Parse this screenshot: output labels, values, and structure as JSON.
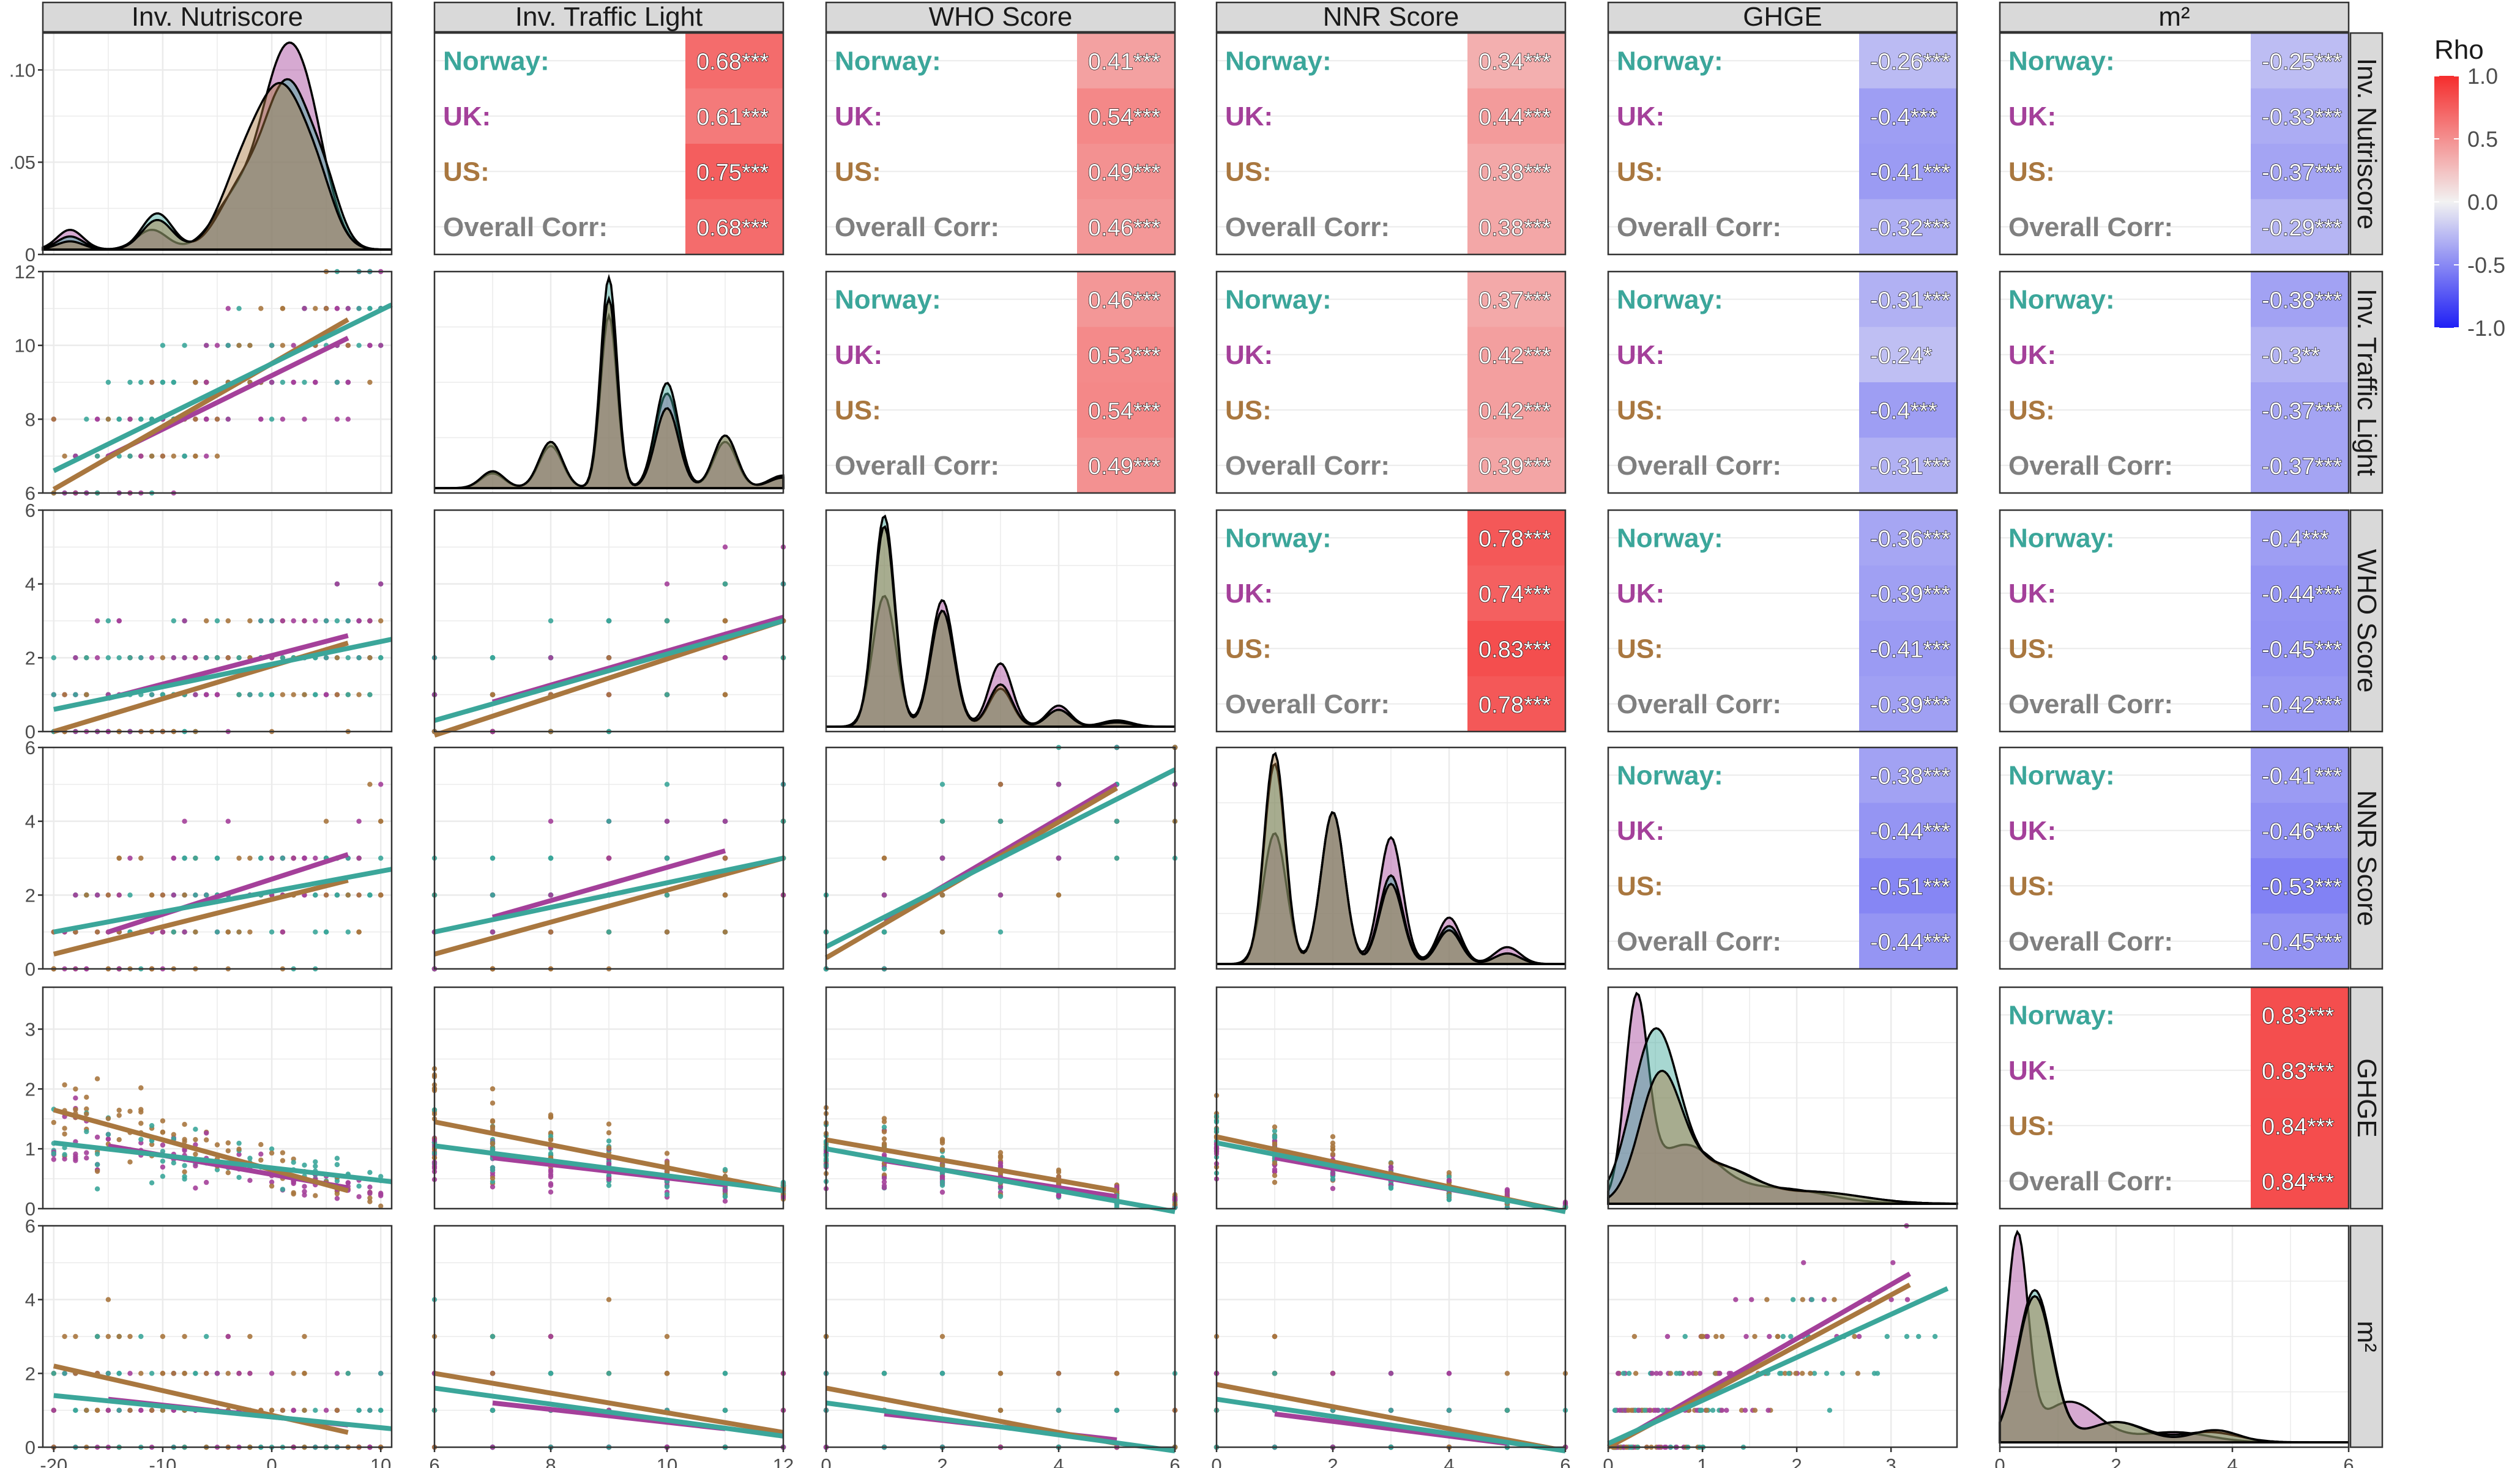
{
  "chart_data": {
    "type": "scatter",
    "title": "",
    "variables": [
      "Inv. Nutriscore",
      "Inv. Traffic Light",
      "WHO Score",
      "NNR Score",
      "GHGE",
      "m²"
    ],
    "groups": [
      {
        "name": "Norway",
        "color": "#3ba69a"
      },
      {
        "name": "UK",
        "color": "#a4409a"
      },
      {
        "name": "US",
        "color": "#a9773f"
      }
    ],
    "overall_label": "Overall Corr:",
    "overall_color": "#7f7f7f",
    "row_labels": [
      "Norway:",
      "UK:",
      "US:",
      "Overall Corr:"
    ],
    "axes": [
      {
        "range": [
          -21,
          11
        ],
        "ticks": [
          -20,
          -10,
          0,
          10
        ],
        "density_ticks": [
          0,
          0.05,
          0.1
        ],
        "density_labels": [
          "0",
          ".05",
          ".10"
        ],
        "density_max": 0.12
      },
      {
        "range": [
          6,
          12
        ],
        "ticks": [
          6,
          8,
          10,
          12
        ]
      },
      {
        "range": [
          0,
          6
        ],
        "ticks": [
          0,
          2,
          4,
          6
        ]
      },
      {
        "range": [
          0,
          6
        ],
        "ticks": [
          0,
          2,
          4,
          6
        ]
      },
      {
        "range": [
          0,
          3.7
        ],
        "ticks": [
          0,
          1,
          2,
          3
        ]
      },
      {
        "range": [
          0,
          6
        ],
        "ticks": [
          0,
          2,
          4,
          6
        ]
      }
    ],
    "correlations": [
      {
        "row": 0,
        "col": 1,
        "values": [
          "0.68***",
          "0.61***",
          "0.75***",
          "0.68***"
        ],
        "rho": [
          0.68,
          0.61,
          0.75,
          0.68
        ]
      },
      {
        "row": 0,
        "col": 2,
        "values": [
          "0.41***",
          "0.54***",
          "0.49***",
          "0.46***"
        ],
        "rho": [
          0.41,
          0.54,
          0.49,
          0.46
        ]
      },
      {
        "row": 0,
        "col": 3,
        "values": [
          "0.34***",
          "0.44***",
          "0.38***",
          "0.38***"
        ],
        "rho": [
          0.34,
          0.44,
          0.38,
          0.38
        ]
      },
      {
        "row": 0,
        "col": 4,
        "values": [
          "-0.26***",
          "-0.4***",
          "-0.41***",
          "-0.32***"
        ],
        "rho": [
          -0.26,
          -0.4,
          -0.41,
          -0.32
        ]
      },
      {
        "row": 0,
        "col": 5,
        "values": [
          "-0.25***",
          "-0.33***",
          "-0.37***",
          "-0.29***"
        ],
        "rho": [
          -0.25,
          -0.33,
          -0.37,
          -0.29
        ]
      },
      {
        "row": 1,
        "col": 2,
        "values": [
          "0.46***",
          "0.53***",
          "0.54***",
          "0.49***"
        ],
        "rho": [
          0.46,
          0.53,
          0.54,
          0.49
        ]
      },
      {
        "row": 1,
        "col": 3,
        "values": [
          "0.37***",
          "0.42***",
          "0.42***",
          "0.39***"
        ],
        "rho": [
          0.37,
          0.42,
          0.42,
          0.39
        ]
      },
      {
        "row": 1,
        "col": 4,
        "values": [
          "-0.31***",
          "-0.24*",
          "-0.4***",
          "-0.31***"
        ],
        "rho": [
          -0.31,
          -0.24,
          -0.4,
          -0.31
        ]
      },
      {
        "row": 1,
        "col": 5,
        "values": [
          "-0.38***",
          "-0.3**",
          "-0.37***",
          "-0.37***"
        ],
        "rho": [
          -0.38,
          -0.3,
          -0.37,
          -0.37
        ]
      },
      {
        "row": 2,
        "col": 3,
        "values": [
          "0.78***",
          "0.74***",
          "0.83***",
          "0.78***"
        ],
        "rho": [
          0.78,
          0.74,
          0.83,
          0.78
        ]
      },
      {
        "row": 2,
        "col": 4,
        "values": [
          "-0.36***",
          "-0.39***",
          "-0.41***",
          "-0.39***"
        ],
        "rho": [
          -0.36,
          -0.39,
          -0.41,
          -0.39
        ]
      },
      {
        "row": 2,
        "col": 5,
        "values": [
          "-0.4***",
          "-0.44***",
          "-0.45***",
          "-0.42***"
        ],
        "rho": [
          -0.4,
          -0.44,
          -0.45,
          -0.42
        ]
      },
      {
        "row": 3,
        "col": 4,
        "values": [
          "-0.38***",
          "-0.44***",
          "-0.51***",
          "-0.44***"
        ],
        "rho": [
          -0.38,
          -0.44,
          -0.51,
          -0.44
        ]
      },
      {
        "row": 3,
        "col": 5,
        "values": [
          "-0.41***",
          "-0.46***",
          "-0.53***",
          "-0.45***"
        ],
        "rho": [
          -0.41,
          -0.46,
          -0.53,
          -0.45
        ]
      },
      {
        "row": 4,
        "col": 5,
        "values": [
          "0.83***",
          "0.83***",
          "0.84***",
          "0.84***"
        ],
        "rho": [
          0.83,
          0.83,
          0.84,
          0.84
        ]
      }
    ],
    "regression_lines": [
      {
        "row": 1,
        "col": 0,
        "lines": [
          [
            -20,
            6.6,
            11,
            11.1
          ],
          [
            -15,
            7.0,
            7,
            10.2
          ],
          [
            -20,
            6.1,
            7,
            10.7
          ]
        ]
      },
      {
        "row": 2,
        "col": 0,
        "lines": [
          [
            -20,
            0.6,
            11,
            2.5
          ],
          [
            -15,
            0.9,
            7,
            2.6
          ],
          [
            -20,
            0.0,
            7,
            2.4
          ]
        ]
      },
      {
        "row": 2,
        "col": 1,
        "lines": [
          [
            6,
            0.3,
            12,
            3.0
          ],
          [
            7,
            0.8,
            12,
            3.1
          ],
          [
            6,
            -0.1,
            12,
            3.0
          ]
        ]
      },
      {
        "row": 3,
        "col": 0,
        "lines": [
          [
            -20,
            1.0,
            11,
            2.7
          ],
          [
            -15,
            1.0,
            7,
            3.1
          ],
          [
            -20,
            0.4,
            7,
            2.4
          ]
        ]
      },
      {
        "row": 3,
        "col": 1,
        "lines": [
          [
            6,
            1.0,
            12,
            3.0
          ],
          [
            7,
            1.4,
            11,
            3.2
          ],
          [
            6,
            0.4,
            12,
            3.0
          ]
        ]
      },
      {
        "row": 3,
        "col": 2,
        "lines": [
          [
            0,
            0.6,
            6,
            5.4
          ],
          [
            1,
            1.3,
            5,
            5.0
          ],
          [
            0,
            0.3,
            5,
            4.9
          ]
        ]
      },
      {
        "row": 4,
        "col": 0,
        "lines": [
          [
            -20,
            1.1,
            11,
            0.45
          ],
          [
            -15,
            1.05,
            7,
            0.35
          ],
          [
            -20,
            1.65,
            7,
            0.3
          ]
        ]
      },
      {
        "row": 4,
        "col": 1,
        "lines": [
          [
            6,
            1.05,
            12,
            0.3
          ],
          [
            7,
            0.85,
            11,
            0.4
          ],
          [
            6,
            1.45,
            12,
            0.3
          ]
        ]
      },
      {
        "row": 4,
        "col": 2,
        "lines": [
          [
            0,
            1.0,
            6,
            -0.05
          ],
          [
            1,
            0.8,
            5,
            0.2
          ],
          [
            0,
            1.15,
            5,
            0.3
          ]
        ]
      },
      {
        "row": 4,
        "col": 3,
        "lines": [
          [
            0,
            1.1,
            6,
            -0.05
          ],
          [
            1,
            0.85,
            5,
            0.15
          ],
          [
            0,
            1.2,
            6,
            -0.05
          ]
        ]
      },
      {
        "row": 5,
        "col": 0,
        "lines": [
          [
            -20,
            1.4,
            11,
            0.5
          ],
          [
            -15,
            1.3,
            7,
            0.6
          ],
          [
            -20,
            2.2,
            7,
            0.4
          ]
        ]
      },
      {
        "row": 5,
        "col": 1,
        "lines": [
          [
            6,
            1.6,
            12,
            0.3
          ],
          [
            7,
            1.2,
            11,
            0.5
          ],
          [
            6,
            2.0,
            12,
            0.4
          ]
        ]
      },
      {
        "row": 5,
        "col": 2,
        "lines": [
          [
            0,
            1.2,
            6,
            -0.1
          ],
          [
            1,
            0.9,
            5,
            0.2
          ],
          [
            0,
            1.6,
            5,
            0.1
          ]
        ]
      },
      {
        "row": 5,
        "col": 3,
        "lines": [
          [
            0,
            1.3,
            6,
            -0.1
          ],
          [
            1,
            0.9,
            5,
            0.1
          ],
          [
            0,
            1.7,
            6,
            -0.1
          ]
        ]
      },
      {
        "row": 5,
        "col": 4,
        "lines": [
          [
            0,
            0.1,
            3.6,
            4.3
          ],
          [
            0.2,
            0.3,
            3.2,
            4.7
          ],
          [
            0,
            0.0,
            3.2,
            4.4
          ]
        ]
      }
    ],
    "legend": {
      "title": "Rho",
      "ticks": [
        1.0,
        0.5,
        0.0,
        -0.5,
        -1.0
      ],
      "tick_labels": [
        "1.0",
        "0.5",
        "0.0",
        "-0.5",
        "-1.0"
      ],
      "low_color": "#1f1ff5",
      "mid_color": "#f2f2f2",
      "high_color": "#f52d2d"
    },
    "xlabel": "",
    "ylabel": ""
  }
}
